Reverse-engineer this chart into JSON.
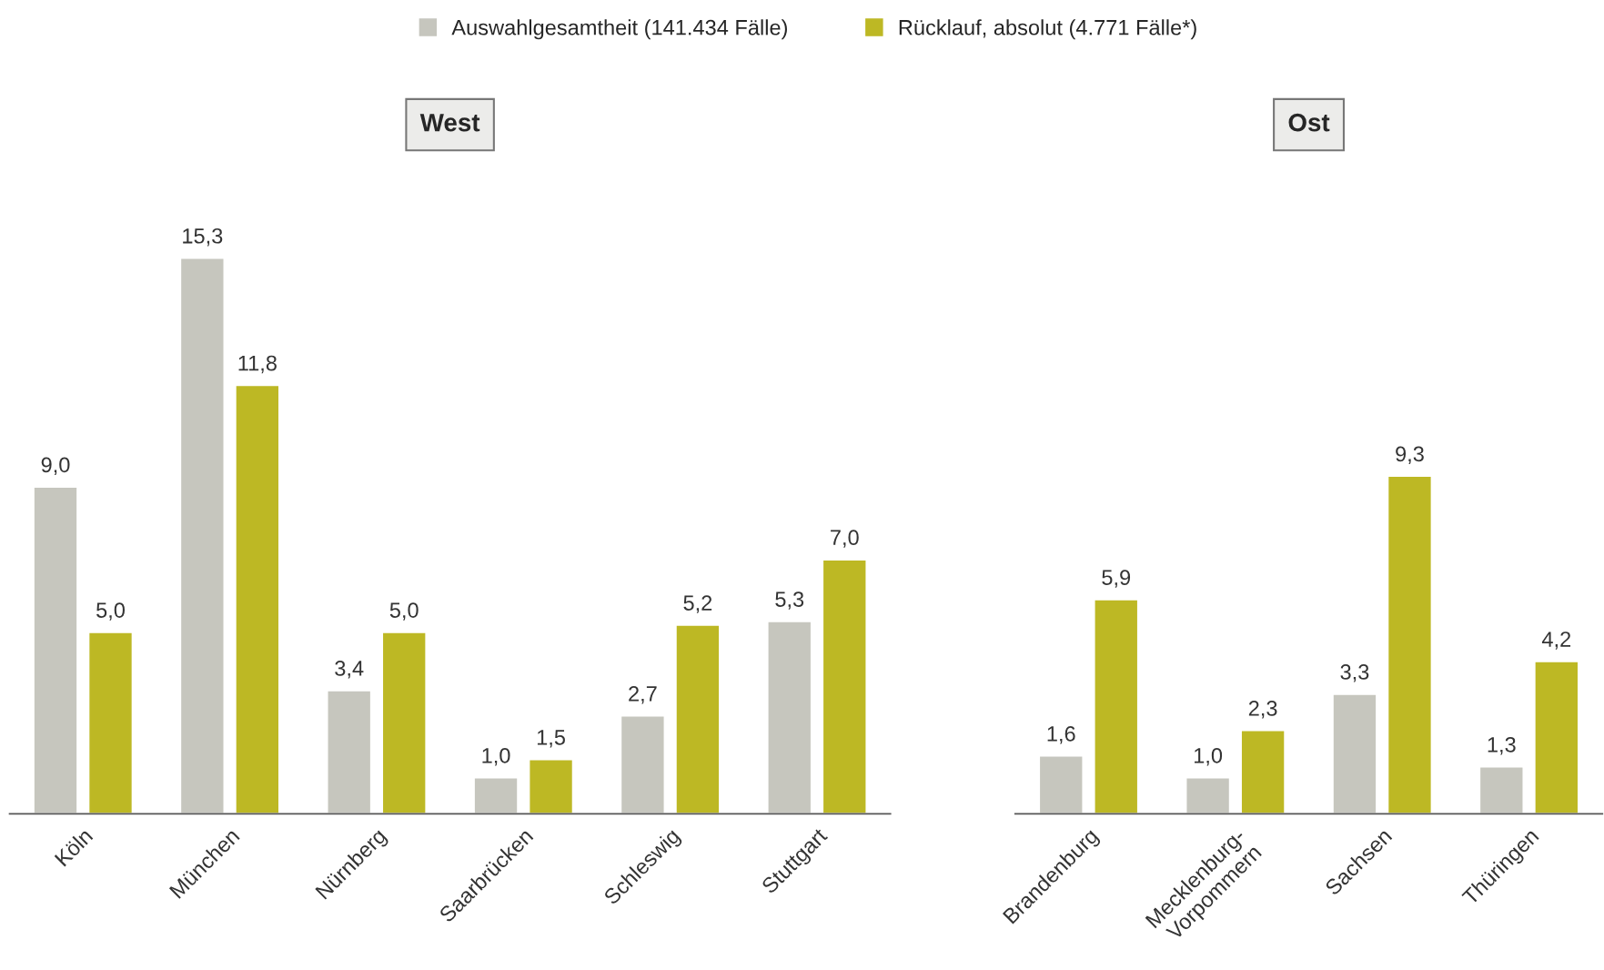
{
  "chart_data": [
    {
      "type": "bar",
      "title": "West",
      "categories": [
        "Köln",
        "München",
        "Nürnberg",
        "Saarbrücken",
        "Schleswig",
        "Stuttgart"
      ],
      "series": [
        {
          "name": "Auswahlgesamtheit (141.434 Fälle)",
          "color": "#c6c6be",
          "values": [
            9.0,
            15.3,
            3.4,
            1.0,
            2.7,
            5.3
          ],
          "value_labels": [
            "9,0",
            "15,3",
            "3,4",
            "1,0",
            "2,7",
            "5,3"
          ]
        },
        {
          "name": "Rücklauf, absolut (4.771 Fälle*)",
          "color": "#bdb824",
          "values": [
            5.0,
            11.8,
            5.0,
            1.5,
            5.2,
            7.0
          ],
          "value_labels": [
            "5,0",
            "11,8",
            "5,0",
            "1,5",
            "5,2",
            "7,0"
          ]
        }
      ],
      "legend": "top",
      "tick_labels": "x"
    },
    {
      "type": "bar",
      "title": "Ost",
      "categories": [
        "Brandenburg",
        "Mecklenburg-\nVorpommern",
        "Sachsen",
        "Thüringen"
      ],
      "series": [
        {
          "color": "#c6c6be",
          "values": [
            1.6,
            1.0,
            3.3,
            1.3
          ],
          "value_labels": [
            "1,6",
            "1,0",
            "3,3",
            "1,3"
          ]
        },
        {
          "color": "#bdb824",
          "values": [
            5.9,
            2.3,
            9.3,
            4.2
          ],
          "value_labels": [
            "5,9",
            "2,3",
            "9,3",
            "4,2"
          ]
        }
      ],
      "tick_labels": "x"
    }
  ]
}
